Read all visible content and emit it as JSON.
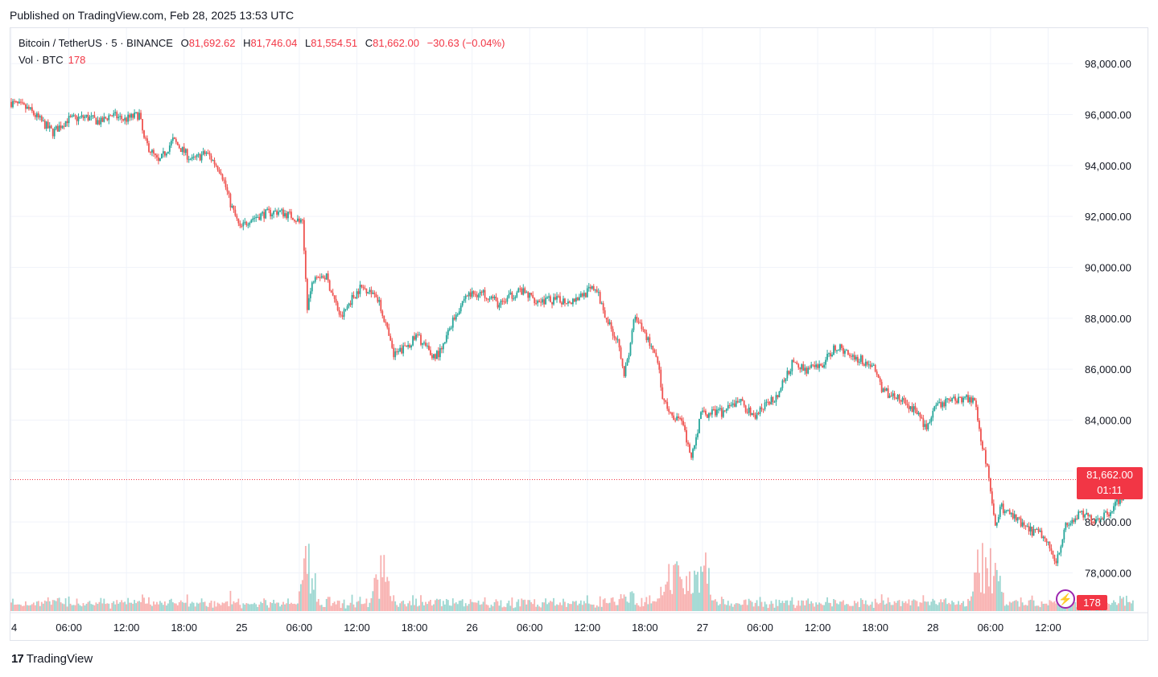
{
  "header": {
    "published": "Published on TradingView.com, Feb 28, 2025 13:53 UTC"
  },
  "legend": {
    "symbol": "Bitcoin / TetherUS · 5 · BINANCE",
    "o_label": "O",
    "o_value": "81,692.62",
    "h_label": "H",
    "h_value": "81,746.04",
    "l_label": "L",
    "l_value": "81,554.51",
    "c_label": "C",
    "c_value": "81,662.00",
    "change": "−30.63 (−0.04%)",
    "vol_label": "Vol · BTC",
    "vol_value": "178"
  },
  "price_tag": {
    "price": "81,662.00",
    "countdown": "01:11"
  },
  "volume_tag": "178",
  "logo": {
    "mark": "17",
    "text": "TradingView"
  },
  "colors": {
    "up": "#26a69a",
    "down": "#ef5350",
    "grid": "#f0f3fa",
    "accent": "#f23645",
    "text": "#131722"
  },
  "chart_data": {
    "type": "candlestick",
    "interval": "5m",
    "ylim": [
      76500,
      98700
    ],
    "y_ticks": [
      98000,
      96000,
      94000,
      92000,
      90000,
      88000,
      86000,
      84000,
      82000,
      80000,
      78000
    ],
    "y_tick_labels": [
      "98,000.00",
      "96,000.00",
      "94,000.00",
      "92,000.00",
      "90,000.00",
      "88,000.00",
      "86,000.00",
      "84,000.00",
      "82,000.00",
      "80,000.00",
      "78,000.00"
    ],
    "x_range_hours": [
      0,
      92.7
    ],
    "x_ticks": [
      {
        "h": 0,
        "label": "4"
      },
      {
        "h": 6,
        "label": "06:00"
      },
      {
        "h": 12,
        "label": "12:00"
      },
      {
        "h": 18,
        "label": "18:00"
      },
      {
        "h": 24,
        "label": "25"
      },
      {
        "h": 30,
        "label": "06:00"
      },
      {
        "h": 36,
        "label": "12:00"
      },
      {
        "h": 42,
        "label": "18:00"
      },
      {
        "h": 48,
        "label": "26"
      },
      {
        "h": 54,
        "label": "06:00"
      },
      {
        "h": 60,
        "label": "12:00"
      },
      {
        "h": 66,
        "label": "18:00"
      },
      {
        "h": 72,
        "label": "27"
      },
      {
        "h": 78,
        "label": "06:00"
      },
      {
        "h": 84,
        "label": "12:00"
      },
      {
        "h": 90,
        "label": "18:00"
      },
      {
        "h": 96,
        "label": "28"
      },
      {
        "h": 102,
        "label": "06:00"
      },
      {
        "h": 108,
        "label": "12:00"
      }
    ],
    "price_path": [
      [
        0,
        96500
      ],
      [
        2,
        96200
      ],
      [
        4.5,
        95300
      ],
      [
        6,
        95800
      ],
      [
        8,
        95900
      ],
      [
        9.5,
        95700
      ],
      [
        10.5,
        96000
      ],
      [
        12,
        95800
      ],
      [
        13.5,
        96000
      ],
      [
        14,
        95000
      ],
      [
        15.5,
        94100
      ],
      [
        17,
        95000
      ],
      [
        19,
        94200
      ],
      [
        20.5,
        94500
      ],
      [
        22,
        93800
      ],
      [
        23,
        92500
      ],
      [
        24,
        91500
      ],
      [
        25,
        91900
      ],
      [
        26.5,
        92100
      ],
      [
        28,
        92200
      ],
      [
        29.5,
        92000
      ],
      [
        30.5,
        91700
      ],
      [
        31,
        88500
      ],
      [
        31.8,
        89800
      ],
      [
        33,
        89600
      ],
      [
        34.5,
        88000
      ],
      [
        35.5,
        88700
      ],
      [
        36.5,
        89200
      ],
      [
        38,
        89100
      ],
      [
        39,
        88000
      ],
      [
        40,
        86500
      ],
      [
        41,
        86800
      ],
      [
        42.5,
        87300
      ],
      [
        44,
        86500
      ],
      [
        45,
        86700
      ],
      [
        46,
        87800
      ],
      [
        47.5,
        88900
      ],
      [
        49,
        89000
      ],
      [
        50,
        88900
      ],
      [
        51,
        88500
      ],
      [
        53,
        89100
      ],
      [
        55,
        88700
      ],
      [
        57,
        88700
      ],
      [
        58.5,
        88700
      ],
      [
        60,
        89000
      ],
      [
        61,
        89200
      ],
      [
        62,
        88200
      ],
      [
        62.5,
        87700
      ],
      [
        63.5,
        87000
      ],
      [
        64,
        85800
      ],
      [
        64.5,
        86500
      ],
      [
        65,
        88000
      ],
      [
        66,
        87500
      ],
      [
        67,
        86800
      ],
      [
        67.5,
        86400
      ],
      [
        68,
        84800
      ],
      [
        69,
        84200
      ],
      [
        70,
        84000
      ],
      [
        71,
        82500
      ],
      [
        72,
        84200
      ],
      [
        73,
        84300
      ],
      [
        74.5,
        84300
      ],
      [
        76,
        84800
      ],
      [
        77.5,
        84100
      ],
      [
        78.5,
        84500
      ],
      [
        80,
        85000
      ],
      [
        81.5,
        86200
      ],
      [
        83,
        86000
      ],
      [
        84.5,
        86100
      ],
      [
        86,
        86900
      ],
      [
        88,
        86500
      ],
      [
        90,
        86100
      ],
      [
        91,
        85100
      ],
      [
        92,
        85000
      ],
      [
        93.5,
        84600
      ],
      [
        94.5,
        84300
      ],
      [
        95.5,
        83700
      ],
      [
        96.5,
        84500
      ],
      [
        98,
        84800
      ],
      [
        99.5,
        84900
      ],
      [
        100.5,
        84800
      ],
      [
        101.3,
        83000
      ],
      [
        102,
        81800
      ],
      [
        102.6,
        79800
      ],
      [
        103.2,
        80600
      ],
      [
        104.5,
        80200
      ],
      [
        106,
        79700
      ],
      [
        107.5,
        79500
      ],
      [
        109,
        78500
      ],
      [
        110,
        79800
      ],
      [
        111.5,
        80300
      ],
      [
        113,
        80100
      ],
      [
        114.5,
        80400
      ],
      [
        116,
        81100
      ],
      [
        117,
        81662
      ]
    ],
    "last_price": 81662,
    "volume_spike_hours": [
      31,
      38.5,
      69,
      70.5,
      72.2,
      101,
      102.2
    ],
    "volume_ymax": 2600
  }
}
